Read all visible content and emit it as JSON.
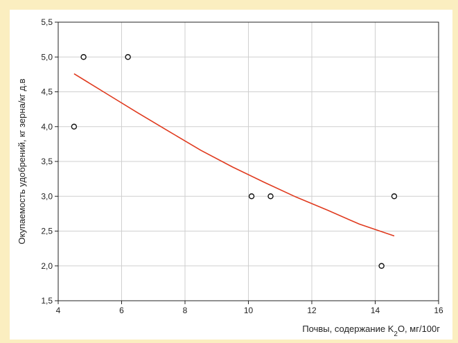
{
  "chart_data": {
    "type": "scatter",
    "title": "",
    "xlabel_parts": {
      "before": "Почвы, содержание K",
      "sub": "2",
      "after": "O, мг/100г"
    },
    "ylabel": "Окупаемость удобрений, кг зерна/кг д.в",
    "xlim": [
      4,
      16
    ],
    "ylim": [
      1.5,
      5.5
    ],
    "x_ticks": [
      "4",
      "6",
      "8",
      "10",
      "12",
      "14",
      "16"
    ],
    "y_ticks": [
      "1,5",
      "2,0",
      "2,5",
      "3,0",
      "3,5",
      "4,0",
      "4,5",
      "5,0",
      "5,5"
    ],
    "grid": true,
    "series": [
      {
        "type": "scatter",
        "marker": "open-circle",
        "points": [
          {
            "x": 4.5,
            "y": 4.0
          },
          {
            "x": 4.8,
            "y": 5.0
          },
          {
            "x": 6.2,
            "y": 5.0
          },
          {
            "x": 10.1,
            "y": 3.0
          },
          {
            "x": 10.7,
            "y": 3.0
          },
          {
            "x": 14.2,
            "y": 2.0
          },
          {
            "x": 14.6,
            "y": 3.0
          }
        ]
      },
      {
        "type": "line",
        "color": "#e03a1e",
        "points": [
          {
            "x": 4.5,
            "y": 4.76
          },
          {
            "x": 5.5,
            "y": 4.48
          },
          {
            "x": 6.5,
            "y": 4.2
          },
          {
            "x": 7.5,
            "y": 3.93
          },
          {
            "x": 8.5,
            "y": 3.66
          },
          {
            "x": 9.5,
            "y": 3.42
          },
          {
            "x": 10.5,
            "y": 3.2
          },
          {
            "x": 11.5,
            "y": 2.99
          },
          {
            "x": 12.5,
            "y": 2.8
          },
          {
            "x": 13.5,
            "y": 2.6
          },
          {
            "x": 14.6,
            "y": 2.43
          }
        ]
      }
    ]
  }
}
